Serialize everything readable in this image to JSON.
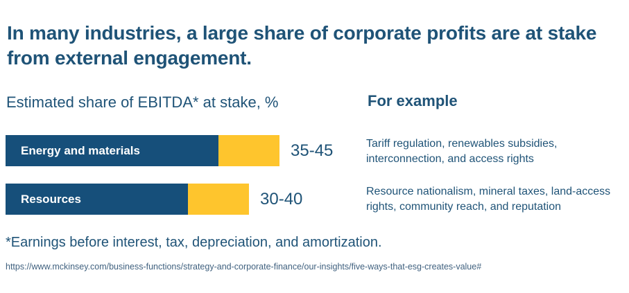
{
  "title": "In many industries, a large share of corporate profits are at stake from external engagement.",
  "chart": {
    "subtitle": "Estimated share of EBITDA* at stake, %",
    "examples_heading": "For example"
  },
  "chart_data": {
    "type": "bar",
    "orientation": "horizontal",
    "title": "Estimated share of EBITDA* at stake, %",
    "unit": "% of EBITDA",
    "categories": [
      "Energy and materials",
      "Resources"
    ],
    "rows": [
      {
        "category": "Energy and materials",
        "low": 35,
        "high": 45,
        "value_label": "35-45",
        "example": "Tariff regulation, renewables subsidies, interconnection, and access rights"
      },
      {
        "category": "Resources",
        "low": 30,
        "high": 40,
        "value_label": "30-40",
        "example": "Resource nationalism, mineral taxes, land-access rights, community reach, and reputation"
      }
    ],
    "legend": "none",
    "axis": "none",
    "colors": {
      "bar_primary": "#164F7A",
      "bar_accent": "#FEC52D",
      "text": "#1F5377"
    }
  },
  "footnote": "*Earnings before interest, tax, depreciation, and amortization.",
  "source_url": "https://www.mckinsey.com/business-functions/strategy-and-corporate-finance/our-insights/five-ways-that-esg-creates-value#"
}
